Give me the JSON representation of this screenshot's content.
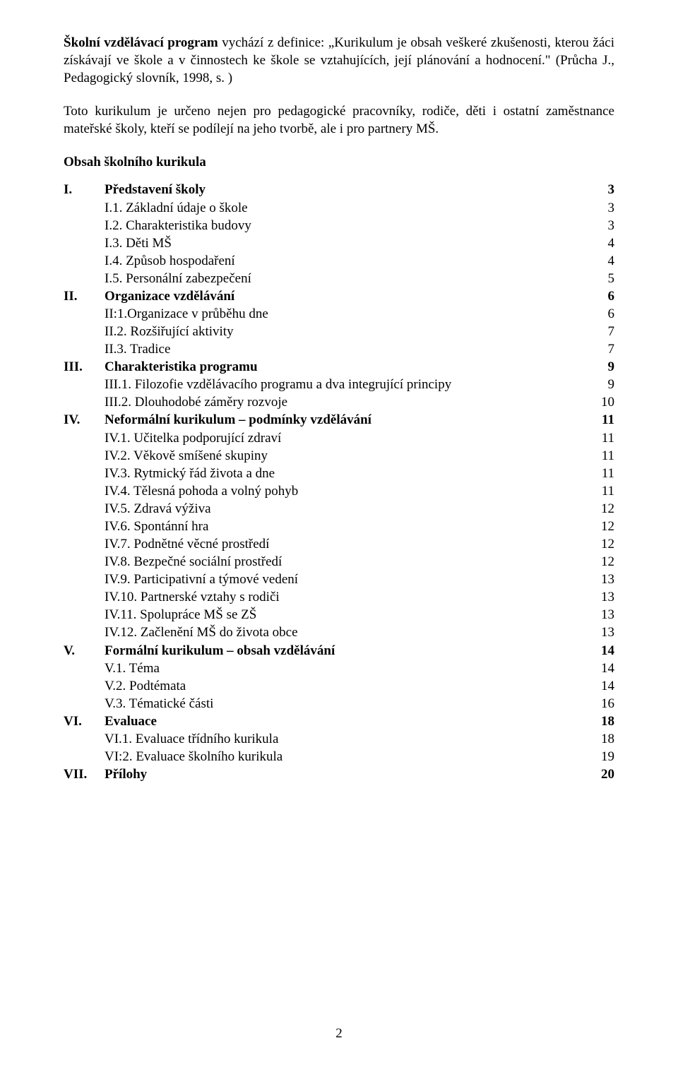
{
  "intro": {
    "lead": "Školní vzdělávací program",
    "text_after_lead": " vychází z definice: „Kurikulum je obsah veškeré zkušenosti, kterou žáci získávají ve škole a v činnostech ke škole se vztahujících, její plánování a hodnocení.\" (Průcha J., Pedagogický slovník, 1998, s. )",
    "para2": "Toto kurikulum je určeno nejen pro pedagogické pracovníky, rodiče, děti i ostatní zaměstnance mateřské školy, kteří se podílejí na jeho tvorbě, ale i pro partnery MŠ."
  },
  "toc_heading": "Obsah školního kurikula",
  "toc": [
    {
      "roman": "I.",
      "label": "Představení  školy",
      "page": "3",
      "bold": true
    },
    {
      "roman": "",
      "label": "I.1. Základní údaje o škole",
      "page": "3",
      "bold": false
    },
    {
      "roman": "",
      "label": "I.2. Charakteristika budovy",
      "page": "3",
      "bold": false
    },
    {
      "roman": "",
      "label": "I.3. Děti MŠ",
      "page": "4",
      "bold": false
    },
    {
      "roman": "",
      "label": "I.4. Způsob hospodaření",
      "page": "4",
      "bold": false
    },
    {
      "roman": "",
      "label": "I.5. Personální zabezpečení",
      "page": "5",
      "bold": false
    },
    {
      "roman": "II.",
      "label": "Organizace vzdělávání",
      "page": "6",
      "bold": true
    },
    {
      "roman": "",
      "label": "II:1.Organizace v průběhu dne",
      "page": "6",
      "bold": false
    },
    {
      "roman": "",
      "label": "II.2. Rozšiřující aktivity",
      "page": "7",
      "bold": false
    },
    {
      "roman": "",
      "label": "II.3. Tradice",
      "page": "7",
      "bold": false
    },
    {
      "roman": "III.",
      "label": "Charakteristika programu",
      "page": "9",
      "bold": true
    },
    {
      "roman": "",
      "label": "III.1. Filozofie vzdělávacího programu a dva integrující principy",
      "page": "9",
      "bold": false
    },
    {
      "roman": "",
      "label": "III.2. Dlouhodobé záměry rozvoje",
      "page": "10",
      "bold": false
    },
    {
      "roman": "IV.",
      "label": "Neformální kurikulum – podmínky vzdělávání",
      "page": "11",
      "bold": true
    },
    {
      "roman": "",
      "label": "IV.1. Učitelka podporující zdraví",
      "page": "11",
      "bold": false
    },
    {
      "roman": "",
      "label": "IV.2. Věkově smíšené skupiny",
      "page": "11",
      "bold": false
    },
    {
      "roman": "",
      "label": "IV.3. Rytmický řád života a dne",
      "page": "11",
      "bold": false
    },
    {
      "roman": "",
      "label": "IV.4. Tělesná pohoda a volný pohyb",
      "page": "11",
      "bold": false
    },
    {
      "roman": "",
      "label": "IV.5. Zdravá výživa",
      "page": "12",
      "bold": false
    },
    {
      "roman": "",
      "label": "IV.6. Spontánní hra",
      "page": "12",
      "bold": false
    },
    {
      "roman": "",
      "label": "IV.7. Podnětné věcné prostředí",
      "page": "12",
      "bold": false
    },
    {
      "roman": "",
      "label": "IV.8. Bezpečné sociální prostředí",
      "page": "12",
      "bold": false
    },
    {
      "roman": "",
      "label": "IV.9. Participativní a týmové vedení",
      "page": "13",
      "bold": false
    },
    {
      "roman": "",
      "label": "IV.10. Partnerské vztahy s rodiči",
      "page": "13",
      "bold": false
    },
    {
      "roman": "",
      "label": "IV.11. Spolupráce MŠ se ZŠ",
      "page": "13",
      "bold": false
    },
    {
      "roman": "",
      "label": "IV.12. Začlenění MŠ do života obce",
      "page": "13",
      "bold": false
    },
    {
      "roman": "V.",
      "label": "Formální kurikulum – obsah vzdělávání",
      "page": "14",
      "bold": true
    },
    {
      "roman": "",
      "label": "V.1. Téma",
      "page": "14",
      "bold": false
    },
    {
      "roman": "",
      "label": "V.2. Podtémata",
      "page": "14",
      "bold": false
    },
    {
      "roman": "",
      "label": "V.3. Tématické části",
      "page": "16",
      "bold": false
    },
    {
      "roman": "VI.",
      "label": "Evaluace",
      "page": "18",
      "bold": true
    },
    {
      "roman": "",
      "label": "VI.1. Evaluace třídního kurikula",
      "page": "18",
      "bold": false
    },
    {
      "roman": "",
      "label": "VI:2. Evaluace školního kurikula",
      "page": "19",
      "bold": false
    },
    {
      "roman": "VII.",
      "label": "Přílohy",
      "page": "20",
      "bold": true
    }
  ],
  "page_number": "2",
  "style": {
    "font_family": "Times New Roman",
    "body_fontsize_pt": 14,
    "text_color": "#000000",
    "background_color": "#ffffff"
  }
}
